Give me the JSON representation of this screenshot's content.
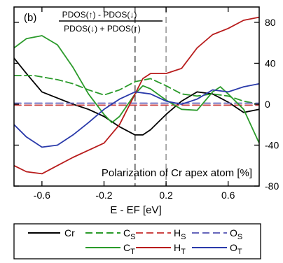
{
  "chart_data": {
    "type": "line",
    "panel_label": "(b)",
    "formula": {
      "numerator": "PDOS(↑) - PDOS(↓)",
      "denominator": "PDOS(↓) + PDOS(↑)"
    },
    "annotation": "Polarization of Cr apex atom [%]",
    "xlabel": "E - EF [eV]",
    "xlim": [
      -0.78,
      0.8
    ],
    "ylim": [
      -80,
      95
    ],
    "xticks": [
      -0.6,
      -0.2,
      0.2,
      0.6
    ],
    "yticks": [
      -80,
      -40,
      0,
      40,
      80
    ],
    "xtick_labels": [
      "-0.6",
      "-0.2",
      "0.2",
      "0.6"
    ],
    "ytick_labels": [
      "-80",
      "-40",
      "0",
      "40",
      "80"
    ],
    "vlines": [
      0.0,
      0.2
    ],
    "legend_position": "bottom",
    "legend": [
      {
        "label": "Cr",
        "sub": ""
      },
      {
        "label": "C",
        "sub": "S"
      },
      {
        "label": "H",
        "sub": "S"
      },
      {
        "label": "O",
        "sub": "S"
      },
      {
        "label": "C",
        "sub": "T"
      },
      {
        "label": "H",
        "sub": "T"
      },
      {
        "label": "O",
        "sub": "T"
      }
    ],
    "series": [
      {
        "key": "Cr",
        "color": "#000000",
        "dash": "solid",
        "x": [
          -0.78,
          -0.7,
          -0.6,
          -0.5,
          -0.4,
          -0.3,
          -0.2,
          -0.1,
          0.0,
          0.05,
          0.1,
          0.2,
          0.3,
          0.4,
          0.5,
          0.6,
          0.7,
          0.8
        ],
        "y": [
          45,
          30,
          12,
          6,
          0,
          -5,
          -12,
          -22,
          -30,
          -30,
          -25,
          -10,
          3,
          12,
          10,
          2,
          -8,
          -5
        ]
      },
      {
        "key": "Cs",
        "color": "#2a9a2a",
        "dash": "dashed",
        "x": [
          -0.78,
          -0.65,
          -0.5,
          -0.4,
          -0.3,
          -0.2,
          -0.1,
          0.0,
          0.1,
          0.2,
          0.3,
          0.4,
          0.5,
          0.6,
          0.7,
          0.8
        ],
        "y": [
          28,
          28,
          24,
          20,
          14,
          9,
          14,
          22,
          25,
          18,
          10,
          8,
          10,
          8,
          3,
          0
        ]
      },
      {
        "key": "Hs",
        "color": "#cc4444",
        "dash": "dashed",
        "x": [
          -0.78,
          -0.4,
          0.0,
          0.4,
          0.8
        ],
        "y": [
          -1,
          -1,
          -1,
          -1,
          -1
        ]
      },
      {
        "key": "Os",
        "color": "#6666bb",
        "dash": "dashed",
        "x": [
          -0.78,
          -0.4,
          0.0,
          0.4,
          0.8
        ],
        "y": [
          1,
          1,
          1,
          1,
          1
        ]
      },
      {
        "key": "Ct",
        "color": "#2a9a2a",
        "dash": "solid",
        "x": [
          -0.78,
          -0.7,
          -0.6,
          -0.5,
          -0.4,
          -0.3,
          -0.2,
          -0.15,
          -0.1,
          0.0,
          0.05,
          0.1,
          0.2,
          0.3,
          0.4,
          0.5,
          0.55,
          0.6,
          0.7,
          0.8
        ],
        "y": [
          55,
          64,
          67,
          58,
          36,
          10,
          -10,
          -18,
          -12,
          10,
          18,
          15,
          4,
          -5,
          -6,
          12,
          17,
          10,
          -5,
          -38
        ]
      },
      {
        "key": "Ht",
        "color": "#b81c1c",
        "dash": "solid",
        "x": [
          -0.78,
          -0.7,
          -0.6,
          -0.5,
          -0.4,
          -0.3,
          -0.2,
          -0.1,
          0.0,
          0.05,
          0.1,
          0.2,
          0.3,
          0.4,
          0.5,
          0.6,
          0.7,
          0.8
        ],
        "y": [
          -60,
          -66,
          -68,
          -60,
          -52,
          -45,
          -38,
          -20,
          10,
          25,
          30,
          30,
          35,
          55,
          68,
          74,
          82,
          85
        ]
      },
      {
        "key": "Ot",
        "color": "#2a3aaa",
        "dash": "solid",
        "x": [
          -0.78,
          -0.7,
          -0.6,
          -0.5,
          -0.4,
          -0.3,
          -0.2,
          -0.1,
          0.0,
          0.1,
          0.2,
          0.3,
          0.4,
          0.5,
          0.6,
          0.7,
          0.8
        ],
        "y": [
          -20,
          -32,
          -42,
          -40,
          -30,
          -18,
          -5,
          5,
          12,
          10,
          3,
          0,
          5,
          14,
          12,
          17,
          20
        ]
      }
    ]
  }
}
